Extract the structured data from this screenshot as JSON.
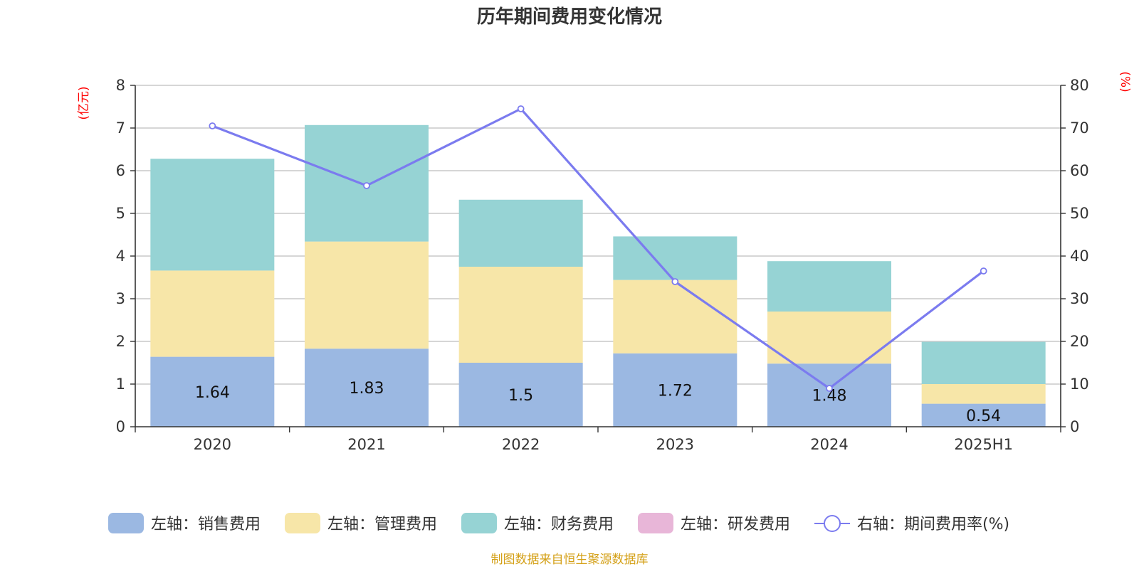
{
  "chart_data": {
    "type": "bar",
    "stacked": true,
    "title": "历年期间费用变化情况",
    "categories": [
      "2020",
      "2021",
      "2022",
      "2023",
      "2024",
      "2025H1"
    ],
    "series": [
      {
        "name": "左轴：销售费用",
        "axis": "left",
        "color": "#9bb8e2",
        "values": [
          1.64,
          1.83,
          1.5,
          1.72,
          1.48,
          0.54
        ],
        "labels": [
          "1.64",
          "1.83",
          "1.5",
          "1.72",
          "1.48",
          "0.54"
        ]
      },
      {
        "name": "左轴：管理费用",
        "axis": "left",
        "color": "#f7e6a8",
        "values": [
          2.02,
          2.51,
          2.25,
          1.72,
          1.22,
          0.46
        ]
      },
      {
        "name": "左轴：财务费用",
        "axis": "left",
        "color": "#96d3d4",
        "values": [
          2.62,
          2.73,
          1.57,
          1.02,
          1.18,
          0.99
        ]
      },
      {
        "name": "左轴：研发费用",
        "axis": "left",
        "color": "#e8b6d8",
        "values": [
          0,
          0,
          0,
          0,
          0,
          0
        ]
      }
    ],
    "line_series": {
      "name": "右轴：期间费用率(%)",
      "axis": "right",
      "color": "#7b7bef",
      "values": [
        70.5,
        56.5,
        74.5,
        34,
        9,
        36.5
      ]
    },
    "left_axis": {
      "unit": "(亿元)",
      "ylim": [
        0,
        8
      ],
      "ticks": [
        "0",
        "1",
        "2",
        "3",
        "4",
        "5",
        "6",
        "7",
        "8"
      ]
    },
    "right_axis": {
      "unit": "(%)",
      "ylim": [
        0,
        80
      ],
      "ticks": [
        "0",
        "10",
        "20",
        "30",
        "40",
        "50",
        "60",
        "70",
        "80"
      ]
    },
    "legend_position": "bottom",
    "grid": true
  },
  "source": "制图数据来自恒生聚源数据库"
}
